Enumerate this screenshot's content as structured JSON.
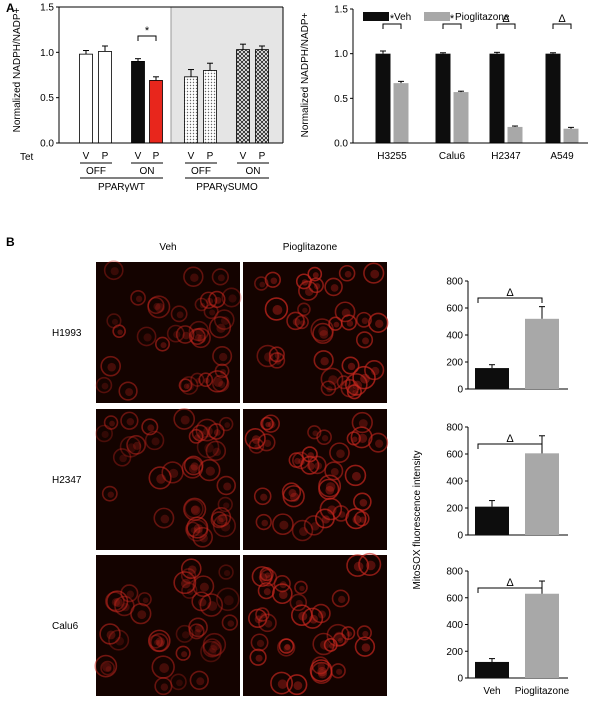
{
  "panel_labels": {
    "a": "A",
    "b": "B"
  },
  "colors": {
    "veh": "#0d0d0d",
    "pio": "#a8a8a8",
    "red": "#e8261c",
    "shade": "#e5e5e5",
    "micro_bg": "#140300",
    "cell": "#c8271e"
  },
  "chart_data": [
    {
      "id": "A-left",
      "type": "bar",
      "ylabel": "Normalized NADPH/NADP+",
      "ylim": [
        0,
        1.5
      ],
      "yticks": [
        "0.0",
        "0.5",
        "1.0",
        "1.5"
      ],
      "categories": [
        "V",
        "P",
        "V",
        "P",
        "V",
        "P",
        "V",
        "P"
      ],
      "values": [
        0.98,
        1.01,
        0.9,
        0.69,
        0.73,
        0.8,
        1.03,
        1.03
      ],
      "errors": [
        0.04,
        0.06,
        0.03,
        0.04,
        0.08,
        0.08,
        0.06,
        0.04
      ],
      "fills": [
        "white",
        "white",
        "black",
        "red",
        "dotted",
        "dotted",
        "crosshatch",
        "crosshatch"
      ],
      "tet_label": "Tet",
      "tet_groups": [
        "OFF",
        "ON",
        "OFF",
        "ON"
      ],
      "construct_groups": [
        "PPARγWT",
        "PPARγSUMO"
      ],
      "significance": "*"
    },
    {
      "id": "A-right",
      "type": "bar",
      "ylabel": "Normalized NADPH/NADP+",
      "ylim": [
        0,
        1.5
      ],
      "yticks": [
        "0.0",
        "0.5",
        "1.0",
        "1.5"
      ],
      "categories": [
        "H3255",
        "Calu6",
        "H2347",
        "A549"
      ],
      "legend": [
        "Veh",
        "Pioglitazone"
      ],
      "series": [
        {
          "name": "Veh",
          "values": [
            1.0,
            1.0,
            1.0,
            1.0
          ],
          "errors": [
            0.03,
            0.01,
            0.015,
            0.01
          ]
        },
        {
          "name": "Pioglitazone",
          "values": [
            0.67,
            0.57,
            0.18,
            0.16
          ],
          "errors": [
            0.02,
            0.01,
            0.01,
            0.015
          ]
        }
      ],
      "significance": [
        "*",
        "*",
        "Δ",
        "Δ"
      ]
    },
    {
      "id": "B-H1993",
      "type": "bar",
      "ylim": [
        0,
        800
      ],
      "yticks": [
        "0",
        "200",
        "400",
        "600",
        "800"
      ],
      "categories": [
        "Veh",
        "Pioglitazone"
      ],
      "values": [
        155,
        520
      ],
      "errors": [
        25,
        90
      ],
      "significance": "Δ"
    },
    {
      "id": "B-H2347",
      "type": "bar",
      "ylim": [
        0,
        800
      ],
      "yticks": [
        "0",
        "200",
        "400",
        "600",
        "800"
      ],
      "categories": [
        "Veh",
        "Pioglitazone"
      ],
      "values": [
        210,
        605
      ],
      "errors": [
        45,
        130
      ],
      "significance": "Δ"
    },
    {
      "id": "B-Calu6",
      "type": "bar",
      "ylim": [
        0,
        800
      ],
      "yticks": [
        "0",
        "200",
        "400",
        "600",
        "800"
      ],
      "categories": [
        "Veh",
        "Pioglitazone"
      ],
      "values": [
        120,
        630
      ],
      "errors": [
        25,
        95
      ],
      "significance": "Δ"
    }
  ],
  "panel_b": {
    "col_labels": [
      "Veh",
      "Pioglitazone"
    ],
    "row_labels": [
      "H1993",
      "H2347",
      "Calu6"
    ],
    "ylabel": "MitoSOX fluorescence intensity",
    "xlabels": [
      "Veh",
      "Pioglitazone"
    ]
  }
}
